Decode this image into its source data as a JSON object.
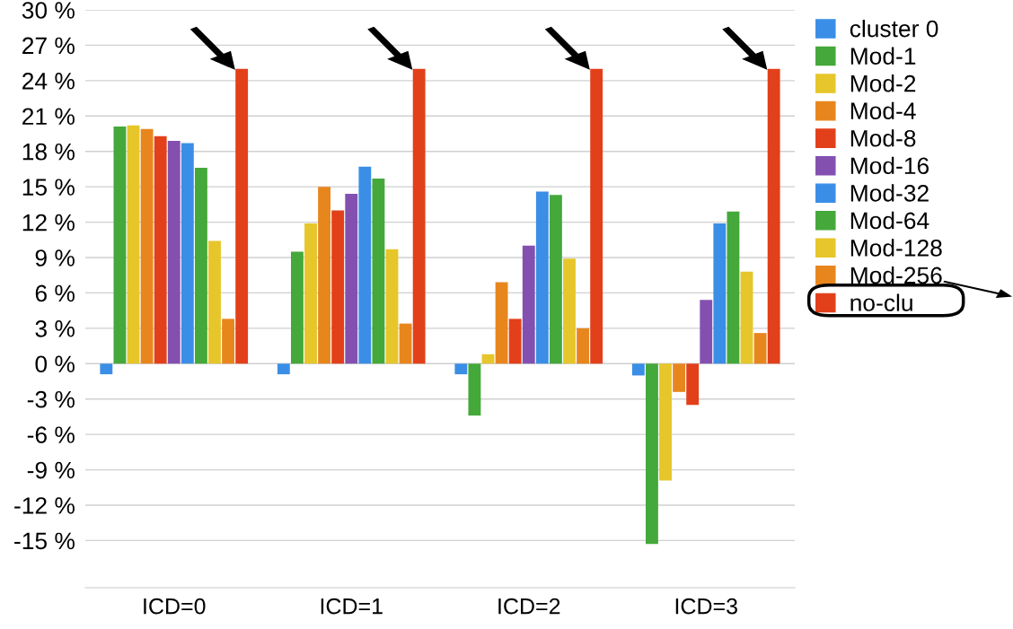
{
  "chart_data": {
    "type": "bar",
    "categories": [
      "ICD=0",
      "ICD=1",
      "ICD=2",
      "ICD=3"
    ],
    "series": [
      {
        "name": "cluster 0",
        "color": "#3a8ee6",
        "values": [
          -0.9,
          -0.9,
          -0.9,
          -1.0
        ]
      },
      {
        "name": "Mod-1",
        "color": "#44a83a",
        "values": [
          20.1,
          9.5,
          -4.4,
          -15.3
        ]
      },
      {
        "name": "Mod-2",
        "color": "#e6c62a",
        "values": [
          20.2,
          11.9,
          0.8,
          -9.9
        ]
      },
      {
        "name": "Mod-4",
        "color": "#e8861e",
        "values": [
          19.9,
          15.0,
          6.9,
          -2.4
        ]
      },
      {
        "name": "Mod-8",
        "color": "#e2401a",
        "values": [
          19.3,
          13.0,
          3.8,
          -3.5
        ]
      },
      {
        "name": "Mod-16",
        "color": "#8450b0",
        "values": [
          18.9,
          14.4,
          10.0,
          5.4
        ]
      },
      {
        "name": "Mod-32",
        "color": "#3a8ee6",
        "values": [
          18.7,
          16.7,
          14.6,
          11.9
        ]
      },
      {
        "name": "Mod-64",
        "color": "#44a83a",
        "values": [
          16.6,
          15.7,
          14.3,
          12.9
        ]
      },
      {
        "name": "Mod-128",
        "color": "#e6c62a",
        "values": [
          10.4,
          9.7,
          8.9,
          7.8
        ]
      },
      {
        "name": "Mod-256",
        "color": "#e8861e",
        "values": [
          3.8,
          3.4,
          3.0,
          2.6
        ]
      },
      {
        "name": "no-clu",
        "color": "#e2401a",
        "values": [
          25.0,
          25.0,
          25.0,
          25.0
        ]
      }
    ],
    "ylim": [
      -19,
      30
    ],
    "yticks": [
      {
        "value": -15,
        "label": "-15 %"
      },
      {
        "value": -12,
        "label": "-12 %"
      },
      {
        "value": -9,
        "label": "-9 %"
      },
      {
        "value": -6,
        "label": "-6 %"
      },
      {
        "value": -3,
        "label": "-3 %"
      },
      {
        "value": 0,
        "label": "0 %"
      },
      {
        "value": 3,
        "label": "3 %"
      },
      {
        "value": 6,
        "label": "6 %"
      },
      {
        "value": 9,
        "label": "9 %"
      },
      {
        "value": 12,
        "label": "12 %"
      },
      {
        "value": 15,
        "label": "15 %"
      },
      {
        "value": 18,
        "label": "18 %"
      },
      {
        "value": 21,
        "label": "21 %"
      },
      {
        "value": 24,
        "label": "24 %"
      },
      {
        "value": 27,
        "label": "27 %"
      },
      {
        "value": 30,
        "label": "30 %"
      }
    ],
    "grid": "y",
    "legend": "top right"
  }
}
